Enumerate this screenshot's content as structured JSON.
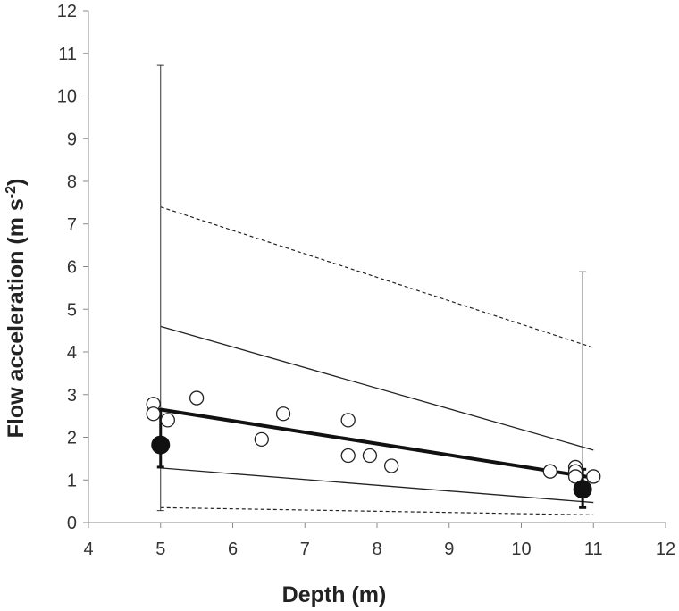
{
  "chart_data": {
    "type": "scatter",
    "xlabel": "Depth (m)",
    "ylabel_main": "Flow acceleration (m s",
    "ylabel_sup": "-2",
    "ylabel_end": ")",
    "xlim": [
      4,
      12
    ],
    "ylim": [
      0,
      12
    ],
    "xticks": [
      "4",
      "5",
      "6",
      "7",
      "8",
      "9",
      "10",
      "11",
      "12"
    ],
    "yticks": [
      "0",
      "1",
      "2",
      "3",
      "4",
      "5",
      "6",
      "7",
      "8",
      "9",
      "10",
      "11",
      "12"
    ],
    "grid": false,
    "observations": [
      {
        "x": 4.9,
        "y": 2.78
      },
      {
        "x": 4.9,
        "y": 2.55
      },
      {
        "x": 5.1,
        "y": 2.4
      },
      {
        "x": 5.5,
        "y": 2.92
      },
      {
        "x": 6.4,
        "y": 1.95
      },
      {
        "x": 6.7,
        "y": 2.55
      },
      {
        "x": 7.6,
        "y": 2.4
      },
      {
        "x": 7.6,
        "y": 1.57
      },
      {
        "x": 7.9,
        "y": 1.57
      },
      {
        "x": 8.2,
        "y": 1.33
      },
      {
        "x": 10.4,
        "y": 1.2
      },
      {
        "x": 10.75,
        "y": 1.3
      },
      {
        "x": 10.75,
        "y": 1.2
      },
      {
        "x": 10.75,
        "y": 1.08
      },
      {
        "x": 11.0,
        "y": 1.08
      }
    ],
    "means": [
      {
        "x": 5.0,
        "y": 1.82,
        "err_low": 1.3,
        "err_high": 2.65,
        "range_low": 0.28,
        "range_high": 10.72
      },
      {
        "x": 10.85,
        "y": 0.78,
        "err_low": 0.35,
        "err_high": 1.25,
        "range_low": 0.35,
        "range_high": 5.88
      }
    ],
    "fit_line": {
      "x": [
        5.0,
        11.0
      ],
      "y": [
        2.65,
        1.05
      ]
    },
    "confidence_lines": [
      {
        "x": [
          5.0,
          11.0
        ],
        "y": [
          4.6,
          1.7
        ]
      },
      {
        "x": [
          5.0,
          11.0
        ],
        "y": [
          1.28,
          0.47
        ]
      }
    ],
    "prediction_lines": [
      {
        "x": [
          5.0,
          11.0
        ],
        "y": [
          7.4,
          4.1
        ]
      },
      {
        "x": [
          5.0,
          11.0
        ],
        "y": [
          0.35,
          0.18
        ]
      }
    ]
  }
}
